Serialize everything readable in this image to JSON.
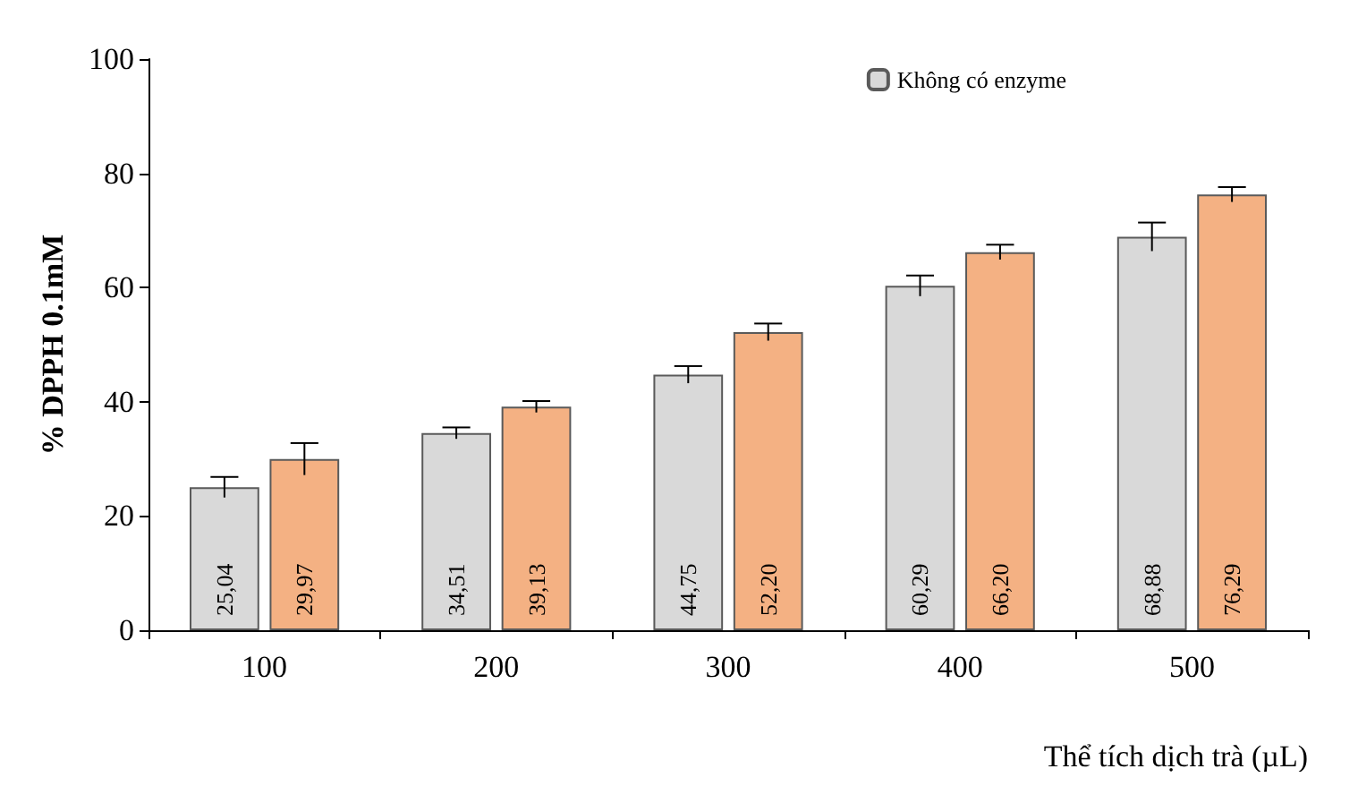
{
  "chart_data": {
    "type": "bar",
    "xlabel": "Thể tích dịch trà (µL)",
    "ylabel": "% DPPH 0.1mM",
    "categories": [
      "100",
      "200",
      "300",
      "400",
      "500"
    ],
    "ylim": [
      0,
      100
    ],
    "yticks": [
      0,
      20,
      40,
      60,
      80,
      100
    ],
    "grid": false,
    "legend": "top right",
    "series": [
      {
        "name": "Không có enzyme",
        "color": "#d9d9d9",
        "values": [
          25.04,
          34.51,
          44.75,
          60.29,
          68.88
        ],
        "errors": [
          1.8,
          1,
          1.5,
          1.8,
          2.5
        ],
        "value_labels": [
          "25,04",
          "34,51",
          "44,75",
          "60,29",
          "68,88"
        ]
      },
      {
        "color": "#f4b183",
        "values": [
          29.97,
          39.13,
          52.2,
          66.2,
          76.29
        ],
        "errors": [
          2.8,
          1,
          1.5,
          1.3,
          1.3
        ],
        "value_labels": [
          "29,97",
          "39,13",
          "52,20",
          "66,20",
          "76,29"
        ]
      }
    ]
  }
}
